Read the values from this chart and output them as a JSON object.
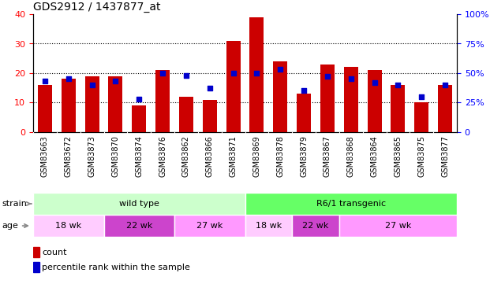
{
  "title": "GDS2912 / 1437877_at",
  "samples": [
    "GSM83663",
    "GSM83672",
    "GSM83873",
    "GSM83870",
    "GSM83874",
    "GSM83876",
    "GSM83862",
    "GSM83866",
    "GSM83871",
    "GSM83869",
    "GSM83878",
    "GSM83879",
    "GSM83867",
    "GSM83868",
    "GSM83864",
    "GSM83865",
    "GSM83875",
    "GSM83877"
  ],
  "counts": [
    16,
    18,
    19,
    19,
    9,
    21,
    12,
    11,
    31,
    39,
    24,
    13,
    23,
    22,
    21,
    16,
    10,
    16
  ],
  "percentiles": [
    43,
    45,
    40,
    43,
    28,
    50,
    48,
    37,
    50,
    50,
    53,
    35,
    47,
    45,
    42,
    40,
    30,
    40
  ],
  "ylim_left": [
    0,
    40
  ],
  "ylim_right": [
    0,
    100
  ],
  "yticks_left": [
    0,
    10,
    20,
    30,
    40
  ],
  "yticks_right": [
    0,
    25,
    50,
    75,
    100
  ],
  "bar_color": "#cc0000",
  "dot_color": "#0000cc",
  "bg_color": "#cccccc",
  "plot_bg_color": "#ffffff",
  "strain_groups": [
    {
      "label": "wild type",
      "start": 0,
      "end": 9,
      "color": "#ccffcc"
    },
    {
      "label": "R6/1 transgenic",
      "start": 9,
      "end": 18,
      "color": "#66ff66"
    }
  ],
  "age_groups": [
    {
      "label": "18 wk",
      "start": 0,
      "end": 3,
      "color": "#ffccff"
    },
    {
      "label": "22 wk",
      "start": 3,
      "end": 6,
      "color": "#cc44cc"
    },
    {
      "label": "27 wk",
      "start": 6,
      "end": 9,
      "color": "#ff99ff"
    },
    {
      "label": "18 wk",
      "start": 9,
      "end": 11,
      "color": "#ffccff"
    },
    {
      "label": "22 wk",
      "start": 11,
      "end": 13,
      "color": "#cc44cc"
    },
    {
      "label": "27 wk",
      "start": 13,
      "end": 18,
      "color": "#ff99ff"
    }
  ],
  "legend_count_label": "count",
  "legend_percentile_label": "percentile rank within the sample",
  "strain_label": "strain",
  "age_label": "age"
}
